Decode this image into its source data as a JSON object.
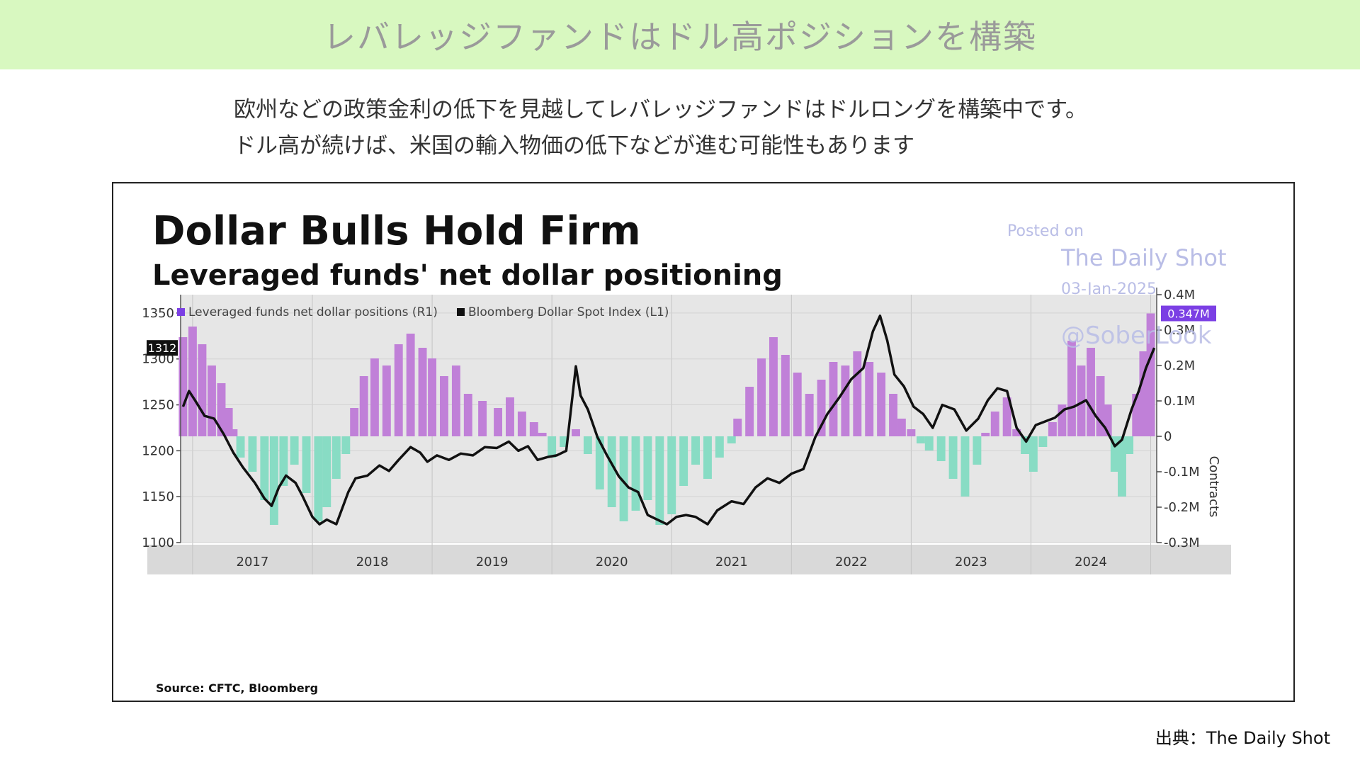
{
  "banner": {
    "title": "レバレッジファンドはドル高ポジションを構築"
  },
  "description": {
    "line1": "欧州などの政策金利の低下を見越してレバレッジファンドはドルロングを構築中です。",
    "line2": "ドル高が続けば、米国の輸入物価の低下などが進む可能性もあります"
  },
  "credit": "出典：The Daily Shot",
  "watermark": {
    "posted_on": "Posted on",
    "site": "The Daily Shot",
    "date": "03-Jan-2025",
    "handle": "@SoberLook"
  },
  "colors": {
    "positive_bar": "#c080d8",
    "negative_bar": "#88dcc4",
    "line": "#111111",
    "plot_bg": "#e6e6e6",
    "badge_right": "#7b3fe4",
    "banner_bg": "#d8f8c0"
  },
  "chart_data": {
    "type": "bar",
    "title": "Dollar Bulls Hold Firm",
    "subtitle": "Leveraged funds' net dollar positioning",
    "source": "Source: CFTC, Bloomberg",
    "legend": [
      "Leveraged funds net dollar positions (R1)",
      "Bloomberg Dollar Spot Index  (L1)"
    ],
    "legend_position": "top",
    "grid": true,
    "x_tick_labels": [
      "2017",
      "2018",
      "2019",
      "2020",
      "2021",
      "2022",
      "2023",
      "2024"
    ],
    "x_range": [
      2016.9,
      2025.05
    ],
    "left_axis": {
      "ticks": [
        1100,
        1150,
        1200,
        1250,
        1300,
        1350
      ],
      "tick_labels": [
        "1100",
        "1150",
        "1200",
        "1250",
        "1300",
        "1350"
      ],
      "range": [
        1100,
        1370
      ],
      "last_value_label": "1312"
    },
    "right_axis": {
      "label": "Contracts",
      "ticks": [
        -0.3,
        -0.2,
        -0.1,
        0,
        0.1,
        0.2,
        0.3,
        0.4
      ],
      "tick_labels": [
        "-0.3M",
        "-0.2M",
        "-0.1M",
        "0",
        "0.1M",
        "0.2M",
        "0.3M",
        "0.4M"
      ],
      "range": [
        -0.3,
        0.4
      ],
      "last_value_label": "0.347M"
    },
    "series": [
      {
        "name": "Leveraged funds net dollar positions (R1)",
        "axis": "right",
        "kind": "bar",
        "unit": "M contracts",
        "points": [
          [
            2016.92,
            0.28
          ],
          [
            2017.0,
            0.31
          ],
          [
            2017.08,
            0.26
          ],
          [
            2017.16,
            0.2
          ],
          [
            2017.24,
            0.15
          ],
          [
            2017.3,
            0.08
          ],
          [
            2017.34,
            0.02
          ],
          [
            2017.4,
            -0.06
          ],
          [
            2017.5,
            -0.1
          ],
          [
            2017.6,
            -0.18
          ],
          [
            2017.68,
            -0.25
          ],
          [
            2017.76,
            -0.14
          ],
          [
            2017.85,
            -0.08
          ],
          [
            2017.95,
            -0.16
          ],
          [
            2018.05,
            -0.24
          ],
          [
            2018.12,
            -0.2
          ],
          [
            2018.2,
            -0.12
          ],
          [
            2018.28,
            -0.05
          ],
          [
            2018.35,
            0.08
          ],
          [
            2018.43,
            0.17
          ],
          [
            2018.52,
            0.22
          ],
          [
            2018.62,
            0.2
          ],
          [
            2018.72,
            0.26
          ],
          [
            2018.82,
            0.29
          ],
          [
            2018.92,
            0.25
          ],
          [
            2019.0,
            0.22
          ],
          [
            2019.1,
            0.17
          ],
          [
            2019.2,
            0.2
          ],
          [
            2019.3,
            0.12
          ],
          [
            2019.42,
            0.1
          ],
          [
            2019.55,
            0.08
          ],
          [
            2019.65,
            0.11
          ],
          [
            2019.75,
            0.07
          ],
          [
            2019.85,
            0.04
          ],
          [
            2019.92,
            0.01
          ],
          [
            2020.0,
            -0.06
          ],
          [
            2020.1,
            -0.03
          ],
          [
            2020.2,
            0.02
          ],
          [
            2020.3,
            -0.05
          ],
          [
            2020.4,
            -0.15
          ],
          [
            2020.5,
            -0.2
          ],
          [
            2020.6,
            -0.24
          ],
          [
            2020.7,
            -0.21
          ],
          [
            2020.8,
            -0.18
          ],
          [
            2020.9,
            -0.25
          ],
          [
            2021.0,
            -0.22
          ],
          [
            2021.1,
            -0.14
          ],
          [
            2021.2,
            -0.08
          ],
          [
            2021.3,
            -0.12
          ],
          [
            2021.4,
            -0.06
          ],
          [
            2021.5,
            -0.02
          ],
          [
            2021.55,
            0.05
          ],
          [
            2021.65,
            0.14
          ],
          [
            2021.75,
            0.22
          ],
          [
            2021.85,
            0.28
          ],
          [
            2021.95,
            0.23
          ],
          [
            2022.05,
            0.18
          ],
          [
            2022.15,
            0.12
          ],
          [
            2022.25,
            0.16
          ],
          [
            2022.35,
            0.21
          ],
          [
            2022.45,
            0.2
          ],
          [
            2022.55,
            0.24
          ],
          [
            2022.65,
            0.21
          ],
          [
            2022.75,
            0.18
          ],
          [
            2022.85,
            0.12
          ],
          [
            2022.92,
            0.05
          ],
          [
            2023.0,
            0.02
          ],
          [
            2023.08,
            -0.02
          ],
          [
            2023.15,
            -0.04
          ],
          [
            2023.25,
            -0.07
          ],
          [
            2023.35,
            -0.12
          ],
          [
            2023.45,
            -0.17
          ],
          [
            2023.55,
            -0.08
          ],
          [
            2023.62,
            0.01
          ],
          [
            2023.7,
            0.07
          ],
          [
            2023.8,
            0.11
          ],
          [
            2023.88,
            0.02
          ],
          [
            2023.95,
            -0.05
          ],
          [
            2024.02,
            -0.1
          ],
          [
            2024.1,
            -0.03
          ],
          [
            2024.18,
            0.04
          ],
          [
            2024.26,
            0.09
          ],
          [
            2024.34,
            0.27
          ],
          [
            2024.42,
            0.2
          ],
          [
            2024.5,
            0.25
          ],
          [
            2024.58,
            0.17
          ],
          [
            2024.64,
            0.09
          ],
          [
            2024.7,
            -0.1
          ],
          [
            2024.76,
            -0.17
          ],
          [
            2024.82,
            -0.05
          ],
          [
            2024.88,
            0.12
          ],
          [
            2024.94,
            0.24
          ],
          [
            2025.0,
            0.347
          ]
        ]
      },
      {
        "name": "Bloomberg Dollar Spot Index  (L1)",
        "axis": "left",
        "kind": "line",
        "unit": "index",
        "points": [
          [
            2016.92,
            1248
          ],
          [
            2016.97,
            1265
          ],
          [
            2017.02,
            1255
          ],
          [
            2017.1,
            1238
          ],
          [
            2017.18,
            1235
          ],
          [
            2017.26,
            1218
          ],
          [
            2017.34,
            1198
          ],
          [
            2017.42,
            1182
          ],
          [
            2017.52,
            1165
          ],
          [
            2017.6,
            1148
          ],
          [
            2017.66,
            1140
          ],
          [
            2017.72,
            1160
          ],
          [
            2017.78,
            1173
          ],
          [
            2017.86,
            1165
          ],
          [
            2017.92,
            1150
          ],
          [
            2018.0,
            1128
          ],
          [
            2018.06,
            1120
          ],
          [
            2018.12,
            1125
          ],
          [
            2018.2,
            1120
          ],
          [
            2018.3,
            1155
          ],
          [
            2018.36,
            1170
          ],
          [
            2018.46,
            1173
          ],
          [
            2018.56,
            1184
          ],
          [
            2018.64,
            1178
          ],
          [
            2018.72,
            1190
          ],
          [
            2018.82,
            1204
          ],
          [
            2018.9,
            1198
          ],
          [
            2018.96,
            1188
          ],
          [
            2019.04,
            1195
          ],
          [
            2019.14,
            1190
          ],
          [
            2019.24,
            1197
          ],
          [
            2019.34,
            1195
          ],
          [
            2019.44,
            1204
          ],
          [
            2019.54,
            1203
          ],
          [
            2019.64,
            1210
          ],
          [
            2019.72,
            1200
          ],
          [
            2019.8,
            1205
          ],
          [
            2019.88,
            1190
          ],
          [
            2019.96,
            1193
          ],
          [
            2020.04,
            1195
          ],
          [
            2020.12,
            1200
          ],
          [
            2020.2,
            1292
          ],
          [
            2020.24,
            1260
          ],
          [
            2020.3,
            1245
          ],
          [
            2020.38,
            1215
          ],
          [
            2020.46,
            1195
          ],
          [
            2020.56,
            1172
          ],
          [
            2020.64,
            1160
          ],
          [
            2020.72,
            1155
          ],
          [
            2020.8,
            1130
          ],
          [
            2020.88,
            1125
          ],
          [
            2020.96,
            1120
          ],
          [
            2021.04,
            1128
          ],
          [
            2021.12,
            1130
          ],
          [
            2021.2,
            1128
          ],
          [
            2021.3,
            1120
          ],
          [
            2021.38,
            1135
          ],
          [
            2021.5,
            1145
          ],
          [
            2021.6,
            1142
          ],
          [
            2021.7,
            1160
          ],
          [
            2021.8,
            1170
          ],
          [
            2021.9,
            1165
          ],
          [
            2022.0,
            1175
          ],
          [
            2022.1,
            1180
          ],
          [
            2022.2,
            1215
          ],
          [
            2022.3,
            1240
          ],
          [
            2022.4,
            1258
          ],
          [
            2022.5,
            1278
          ],
          [
            2022.6,
            1290
          ],
          [
            2022.68,
            1330
          ],
          [
            2022.74,
            1347
          ],
          [
            2022.8,
            1320
          ],
          [
            2022.86,
            1283
          ],
          [
            2022.94,
            1270
          ],
          [
            2023.02,
            1248
          ],
          [
            2023.1,
            1240
          ],
          [
            2023.18,
            1225
          ],
          [
            2023.26,
            1250
          ],
          [
            2023.36,
            1245
          ],
          [
            2023.46,
            1222
          ],
          [
            2023.56,
            1235
          ],
          [
            2023.64,
            1255
          ],
          [
            2023.72,
            1268
          ],
          [
            2023.8,
            1265
          ],
          [
            2023.88,
            1225
          ],
          [
            2023.96,
            1210
          ],
          [
            2024.04,
            1228
          ],
          [
            2024.12,
            1232
          ],
          [
            2024.2,
            1236
          ],
          [
            2024.28,
            1245
          ],
          [
            2024.36,
            1248
          ],
          [
            2024.46,
            1255
          ],
          [
            2024.54,
            1238
          ],
          [
            2024.62,
            1225
          ],
          [
            2024.7,
            1205
          ],
          [
            2024.76,
            1212
          ],
          [
            2024.84,
            1245
          ],
          [
            2024.9,
            1265
          ],
          [
            2024.96,
            1290
          ],
          [
            2025.03,
            1312
          ]
        ]
      }
    ]
  }
}
